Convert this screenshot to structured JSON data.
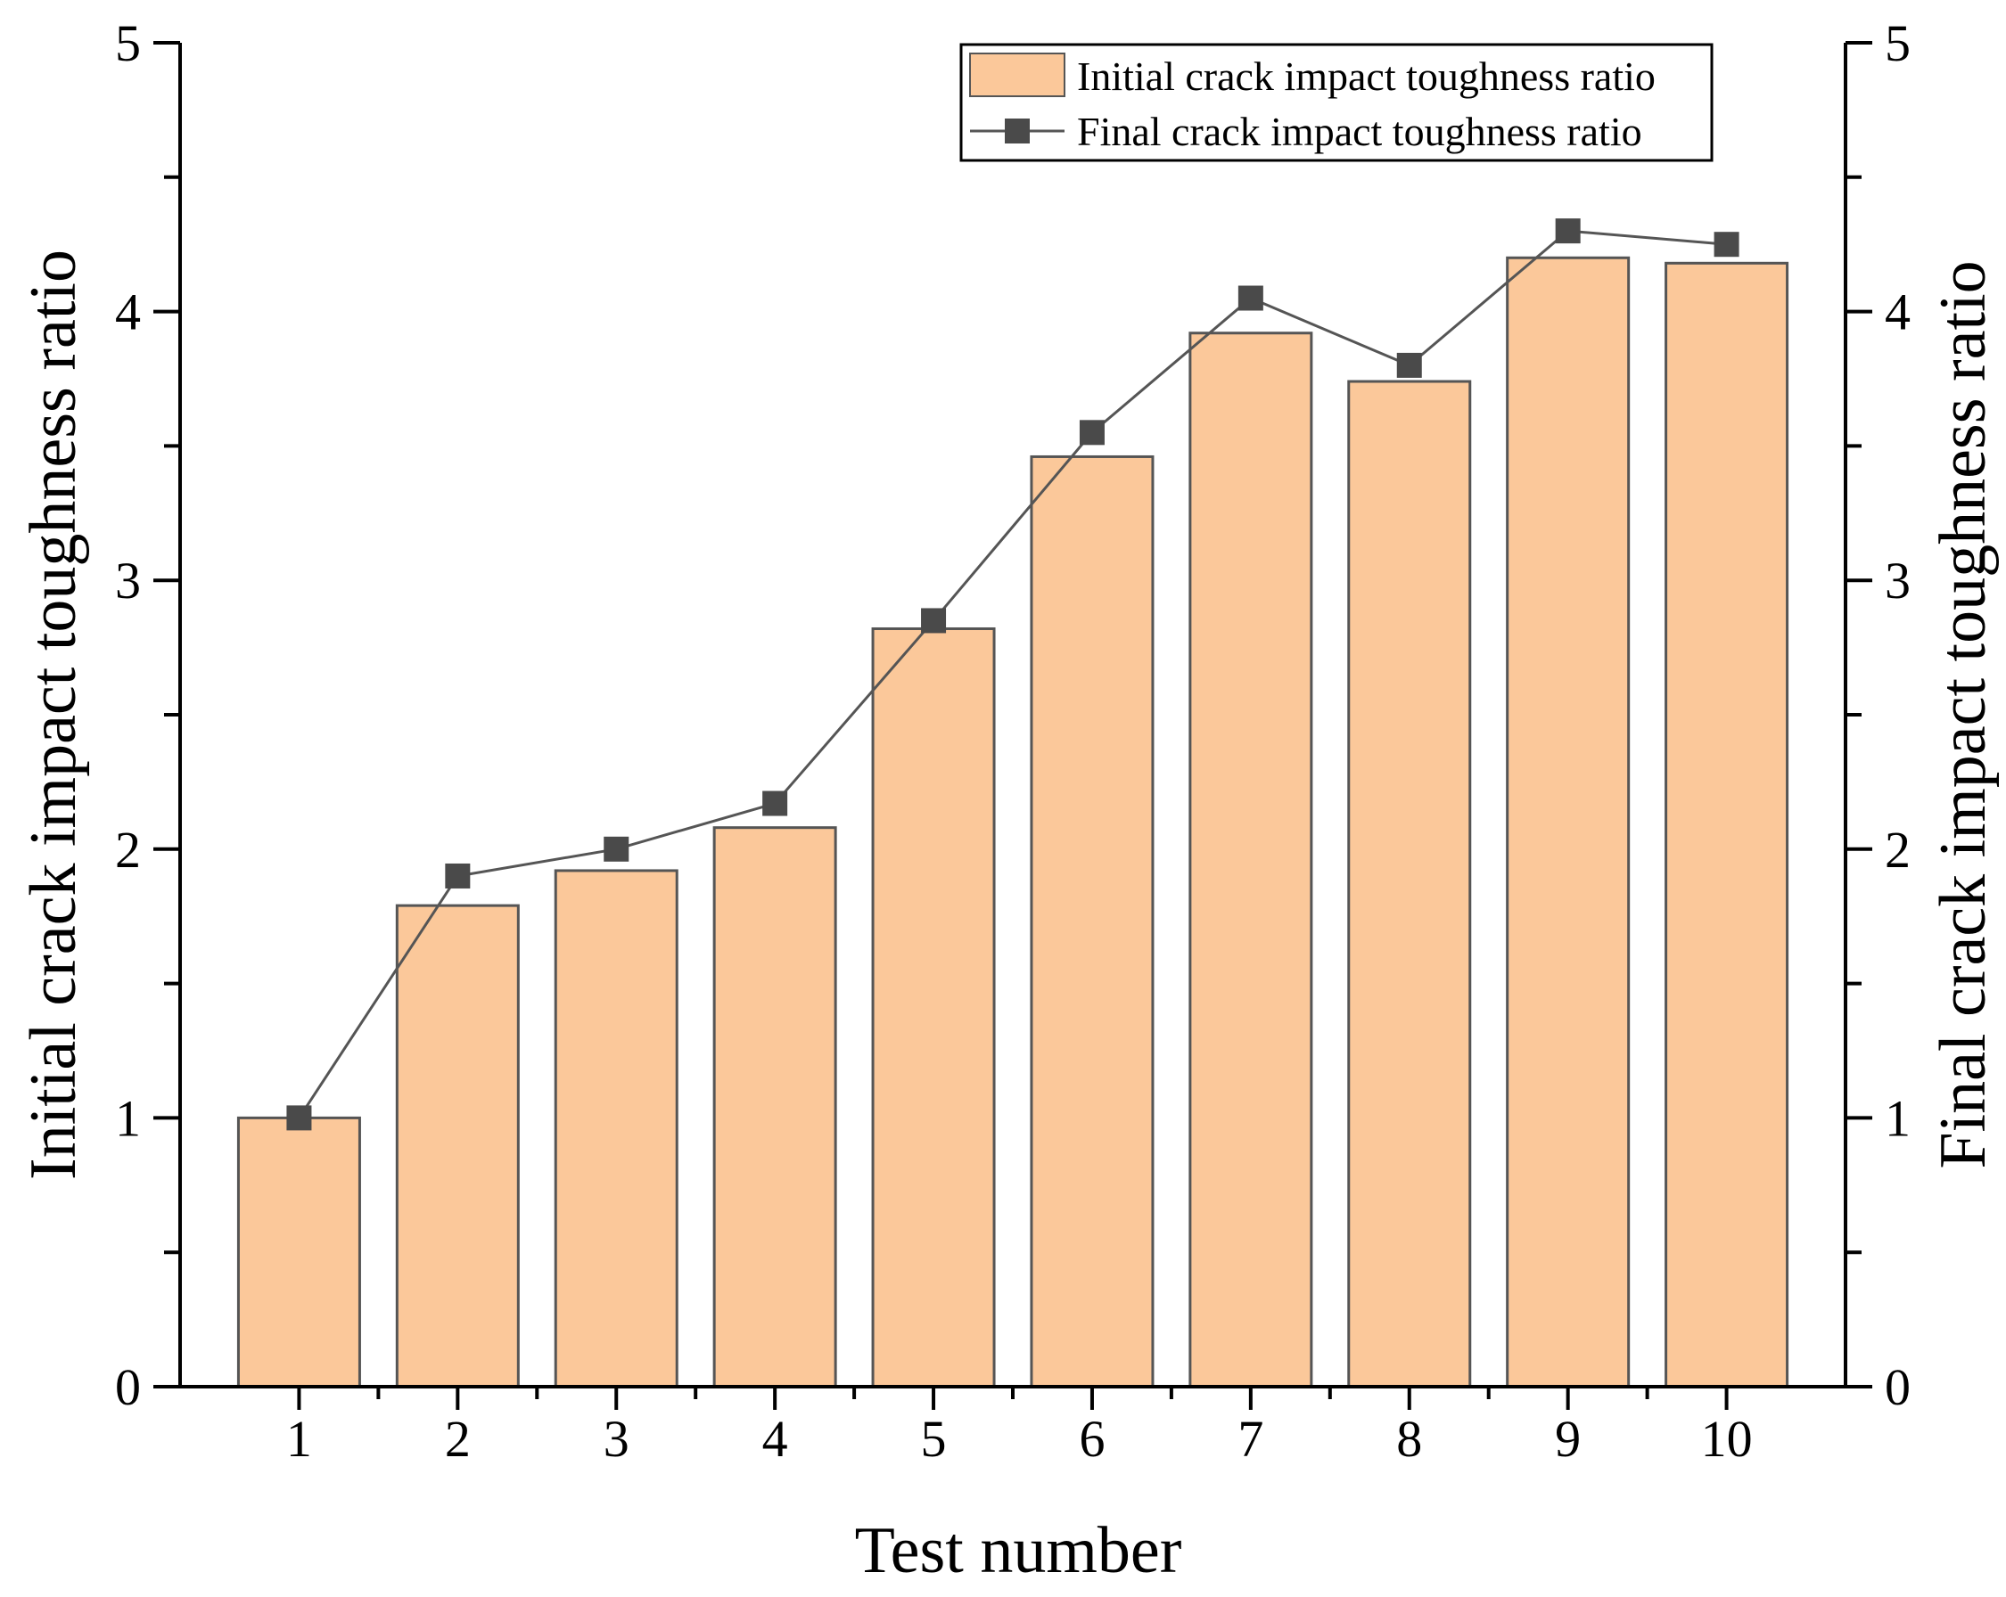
{
  "chart_data": {
    "type": "bar",
    "categories": [
      "1",
      "2",
      "3",
      "4",
      "5",
      "6",
      "7",
      "8",
      "9",
      "10"
    ],
    "series": [
      {
        "name": "Initial crack impact toughness ratio",
        "chart": "bar",
        "axis": "left",
        "values": [
          1.0,
          1.79,
          1.92,
          2.08,
          2.82,
          3.46,
          3.92,
          3.74,
          4.2,
          4.18
        ]
      },
      {
        "name": "Final crack impact toughness ratio",
        "chart": "line",
        "marker": "square",
        "axis": "right",
        "values": [
          1.0,
          1.9,
          2.0,
          2.17,
          2.85,
          3.55,
          4.05,
          3.8,
          4.3,
          4.25
        ]
      }
    ],
    "title": "",
    "xlabel": "Test number",
    "ylabel": "Initial crack impact toughness ratio",
    "ylabel_right": "Final crack impact toughness ratio",
    "ylim": [
      0,
      5
    ],
    "ylim_right": [
      0,
      5
    ],
    "yticks": [
      "0",
      "1",
      "2",
      "3",
      "4",
      "5"
    ],
    "grid": false,
    "legend_position": "top-right",
    "colors": {
      "bar_fill": "#fbc89a",
      "bar_edge": "#555555",
      "line": "#555555",
      "marker": "#4a4a4a",
      "axis": "#000000"
    }
  }
}
